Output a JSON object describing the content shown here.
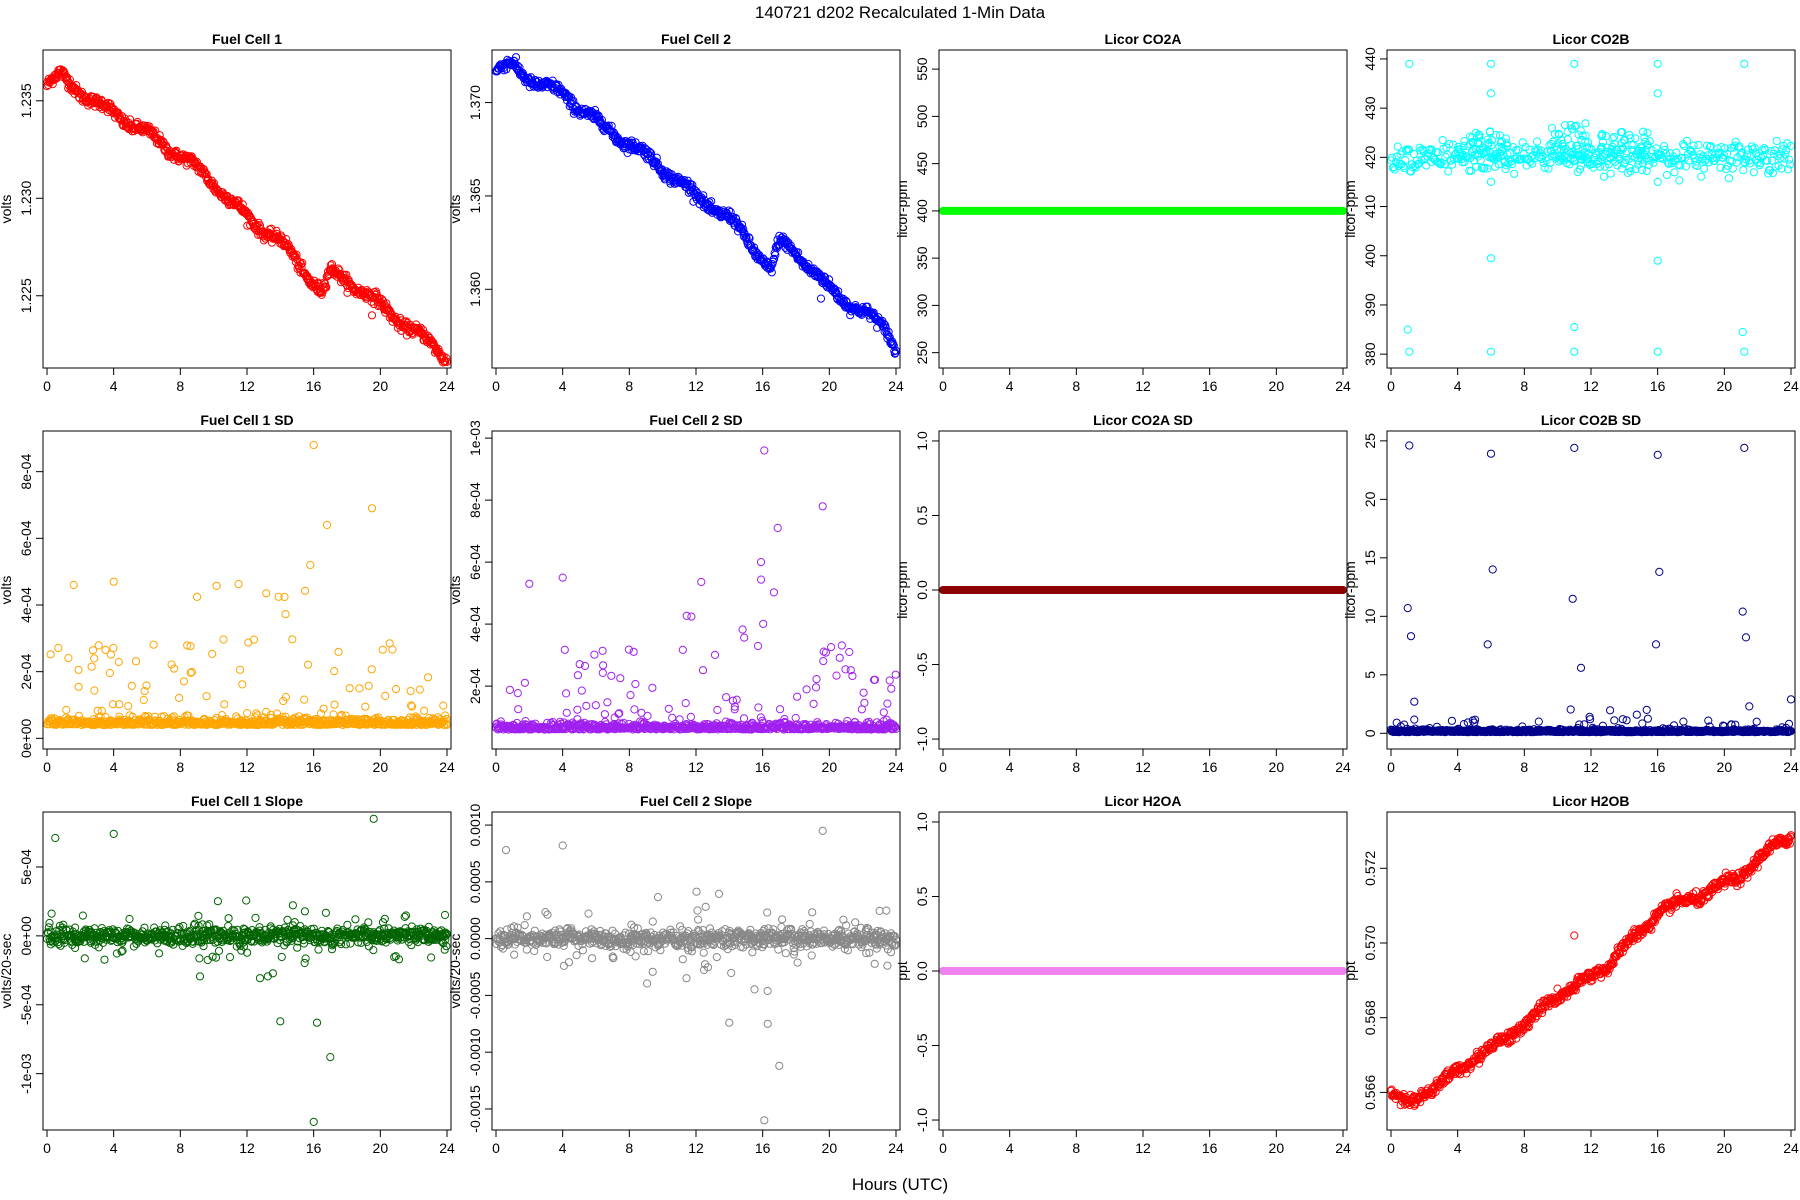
{
  "figure": {
    "title": "140721    d202   Recalculated 1-Min Data",
    "xlabel": "Hours (UTC)"
  },
  "chart_data": [
    {
      "type": "scatter",
      "title": "Fuel Cell 1",
      "ylabel": "volts",
      "color": "#ff0000",
      "xlim": [
        0,
        24
      ],
      "xticks": [
        "0",
        "4",
        "8",
        "12",
        "16",
        "20",
        "24"
      ],
      "ylim": [
        1.2215,
        1.2374
      ],
      "yticks": [
        {
          "value": 1.225,
          "label": "1.225"
        },
        {
          "value": 1.23,
          "label": "1.230"
        },
        {
          "value": 1.235,
          "label": "1.235"
        }
      ],
      "series": {
        "name": "Fuel Cell 1",
        "trend": [
          [
            0,
            1.2358
          ],
          [
            0.8,
            1.2363
          ],
          [
            2,
            1.2355
          ],
          [
            3,
            1.2348
          ],
          [
            4,
            1.2344
          ],
          [
            6,
            1.2333
          ],
          [
            8,
            1.2322
          ],
          [
            10,
            1.2308
          ],
          [
            12,
            1.229
          ],
          [
            14,
            1.2278
          ],
          [
            15.5,
            1.2262
          ],
          [
            16.5,
            1.2252
          ],
          [
            17,
            1.2262
          ],
          [
            18,
            1.2258
          ],
          [
            19,
            1.2252
          ],
          [
            20,
            1.2245
          ],
          [
            22,
            1.2232
          ],
          [
            23.5,
            1.2222
          ],
          [
            24,
            1.2218
          ]
        ],
        "noise": 0.00035,
        "spread": [
          [
            0,
            24,
            0.00015
          ]
        ],
        "outliers": [
          [
            19.5,
            1.224
          ]
        ]
      }
    },
    {
      "type": "scatter",
      "title": "Fuel Cell 2",
      "ylabel": "volts",
      "color": "#0000ff",
      "xlim": [
        0,
        24
      ],
      "xticks": [
        "0",
        "4",
        "8",
        "12",
        "16",
        "20",
        "24"
      ],
      "ylim": [
        1.356,
        1.3726
      ],
      "yticks": [
        {
          "value": 1.36,
          "label": "1.360"
        },
        {
          "value": 1.365,
          "label": "1.365"
        },
        {
          "value": 1.37,
          "label": "1.370"
        }
      ],
      "series": {
        "name": "Fuel Cell 2",
        "trend": [
          [
            0,
            1.3717
          ],
          [
            1,
            1.372
          ],
          [
            2,
            1.3713
          ],
          [
            3,
            1.3708
          ],
          [
            4,
            1.3705
          ],
          [
            6,
            1.369
          ],
          [
            8,
            1.3678
          ],
          [
            10,
            1.3665
          ],
          [
            12,
            1.365
          ],
          [
            14,
            1.3638
          ],
          [
            15.5,
            1.3622
          ],
          [
            16.5,
            1.361
          ],
          [
            17,
            1.3625
          ],
          [
            18,
            1.362
          ],
          [
            19,
            1.361
          ],
          [
            20,
            1.36
          ],
          [
            22,
            1.3588
          ],
          [
            23.5,
            1.3578
          ],
          [
            24,
            1.3568
          ]
        ],
        "noise": 0.00035,
        "spread": [
          [
            0,
            24,
            0.00015
          ]
        ],
        "outliers": [
          [
            19.5,
            1.3595
          ]
        ]
      }
    },
    {
      "type": "scatter",
      "title": "Licor CO2A",
      "ylabel": "licor-ppm",
      "color": "#00ff00",
      "xlim": [
        0,
        24
      ],
      "xticks": [
        "0",
        "4",
        "8",
        "12",
        "16",
        "20",
        "24"
      ],
      "ylim": [
        238,
        566
      ],
      "yticks": [
        {
          "value": 250,
          "label": "250"
        },
        {
          "value": 300,
          "label": "300"
        },
        {
          "value": 350,
          "label": "350"
        },
        {
          "value": 400,
          "label": "400"
        },
        {
          "value": 450,
          "label": "450"
        },
        {
          "value": 500,
          "label": "500"
        },
        {
          "value": 550,
          "label": "550"
        }
      ],
      "series": {
        "name": "Licor CO2A",
        "constant": 400
      }
    },
    {
      "type": "scatter",
      "title": "Licor CO2B",
      "ylabel": "licor-ppm",
      "color": "#00ffff",
      "xlim": [
        0,
        24
      ],
      "xticks": [
        "0",
        "4",
        "8",
        "12",
        "16",
        "20",
        "24"
      ],
      "ylim": [
        378,
        441
      ],
      "yticks": [
        {
          "value": 380,
          "label": "380"
        },
        {
          "value": 390,
          "label": "390"
        },
        {
          "value": 400,
          "label": "400"
        },
        {
          "value": 410,
          "label": "410"
        },
        {
          "value": 420,
          "label": "420"
        },
        {
          "value": 430,
          "label": "430"
        },
        {
          "value": 440,
          "label": "440"
        }
      ],
      "series": {
        "name": "Licor CO2B",
        "baseline": 420,
        "noise_points": 420,
        "noise_amp": 1.5,
        "bursts": [
          [
            4,
            7,
            4
          ],
          [
            9.5,
            12,
            5
          ],
          [
            12.5,
            15.5,
            4
          ]
        ],
        "outliers": [
          [
            1.1,
            439
          ],
          [
            1.1,
            380.5
          ],
          [
            1.0,
            385
          ],
          [
            6,
            439
          ],
          [
            6,
            380.5
          ],
          [
            6,
            433
          ],
          [
            6,
            399.5
          ],
          [
            6,
            415
          ],
          [
            11,
            439
          ],
          [
            11,
            380.5
          ],
          [
            11,
            385.5
          ],
          [
            16,
            439
          ],
          [
            16,
            380.5
          ],
          [
            16,
            433
          ],
          [
            16,
            399
          ],
          [
            16,
            415
          ],
          [
            21.2,
            439
          ],
          [
            21.2,
            380.5
          ],
          [
            21.1,
            384.5
          ],
          [
            11.2,
            417
          ]
        ]
      }
    },
    {
      "type": "scatter",
      "title": "Fuel Cell 1 SD",
      "ylabel": "volts",
      "color": "#ffa500",
      "xlim": [
        0,
        24
      ],
      "xticks": [
        "0",
        "4",
        "8",
        "12",
        "16",
        "20",
        "24"
      ],
      "ylim": [
        -2e-05,
        0.00091
      ],
      "yticks": [
        {
          "value": 0,
          "label": "0e+00"
        },
        {
          "value": 0.0002,
          "label": "2e-04"
        },
        {
          "value": 0.0004,
          "label": "4e-04"
        },
        {
          "value": 0.0006,
          "label": "6e-04"
        },
        {
          "value": 0.0008,
          "label": "8e-04"
        }
      ],
      "series": {
        "name": "Fuel Cell 1 SD",
        "baseline": 4e-05,
        "noise_amp": 1e-05,
        "scatter_max": 0.00045,
        "scatter_count": 130,
        "outliers": [
          [
            16,
            0.00088
          ],
          [
            19.5,
            0.00069
          ],
          [
            16.8,
            0.00064
          ],
          [
            15.8,
            0.00052
          ],
          [
            4,
            0.00047
          ],
          [
            1.6,
            0.00046
          ]
        ]
      }
    },
    {
      "type": "scatter",
      "title": "Fuel Cell 2 SD",
      "ylabel": "volts",
      "color": "#a020f0",
      "xlim": [
        0,
        24
      ],
      "xticks": [
        "0",
        "4",
        "8",
        "12",
        "16",
        "20",
        "24"
      ],
      "ylim": [
        1e-05,
        0.00101
      ],
      "yticks": [
        {
          "value": 0.0002,
          "label": "2e-04"
        },
        {
          "value": 0.0004,
          "label": "4e-04"
        },
        {
          "value": 0.0006,
          "label": "6e-04"
        },
        {
          "value": 0.0008,
          "label": "8e-04"
        },
        {
          "value": 0.001,
          "label": "1e-03"
        }
      ],
      "series": {
        "name": "Fuel Cell 2 SD",
        "baseline": 6e-05,
        "noise_amp": 1e-05,
        "scatter_max": 0.0005,
        "scatter_count": 130,
        "outliers": [
          [
            16.1,
            0.00096
          ],
          [
            19.6,
            0.00078
          ],
          [
            16.9,
            0.00071
          ],
          [
            15.9,
            0.0006
          ],
          [
            4,
            0.00055
          ],
          [
            2,
            0.00053
          ]
        ]
      }
    },
    {
      "type": "scatter",
      "title": "Licor CO2A SD",
      "ylabel": "licor-ppm",
      "color": "#8b0000",
      "xlim": [
        0,
        24
      ],
      "xticks": [
        "0",
        "4",
        "8",
        "12",
        "16",
        "20",
        "24"
      ],
      "ylim": [
        -1.04,
        1.04
      ],
      "yticks": [
        {
          "value": -1,
          "label": "-1.0"
        },
        {
          "value": -0.5,
          "label": "-0.5"
        },
        {
          "value": 0,
          "label": "0.0"
        },
        {
          "value": 0.5,
          "label": "0.5"
        },
        {
          "value": 1,
          "label": "1.0"
        }
      ],
      "series": {
        "name": "Licor CO2A SD",
        "constant": 0
      }
    },
    {
      "type": "scatter",
      "title": "Licor CO2B SD",
      "ylabel": "licor-ppm",
      "color": "#00008b",
      "xlim": [
        0,
        24
      ],
      "xticks": [
        "0",
        "4",
        "8",
        "12",
        "16",
        "20",
        "24"
      ],
      "ylim": [
        -1,
        25.5
      ],
      "yticks": [
        {
          "value": 0,
          "label": "0"
        },
        {
          "value": 5,
          "label": "5"
        },
        {
          "value": 10,
          "label": "10"
        },
        {
          "value": 15,
          "label": "15"
        },
        {
          "value": 20,
          "label": "20"
        },
        {
          "value": 25,
          "label": "25"
        }
      ],
      "series": {
        "name": "Licor CO2B SD",
        "baseline": 0.1,
        "noise_amp": 0.1,
        "scatter_max": 2,
        "scatter_count": 90,
        "outliers": [
          [
            1.1,
            24.6
          ],
          [
            1.0,
            10.7
          ],
          [
            1.2,
            8.3
          ],
          [
            1.4,
            2.7
          ],
          [
            6,
            23.9
          ],
          [
            6.1,
            14
          ],
          [
            5.8,
            7.6
          ],
          [
            11,
            24.4
          ],
          [
            10.9,
            11.5
          ],
          [
            11.4,
            5.6
          ],
          [
            16,
            23.8
          ],
          [
            16.1,
            13.8
          ],
          [
            15.9,
            7.6
          ],
          [
            21.2,
            24.4
          ],
          [
            21.1,
            10.4
          ],
          [
            21.3,
            8.2
          ],
          [
            21.5,
            2.3
          ],
          [
            24,
            2.9
          ]
        ]
      }
    },
    {
      "type": "scatter",
      "title": "Fuel Cell 1 Slope",
      "ylabel": "volts/20-sec",
      "color": "#006400",
      "xlim": [
        0,
        24
      ],
      "xticks": [
        "0",
        "4",
        "8",
        "12",
        "16",
        "20",
        "24"
      ],
      "ylim": [
        -0.00138,
        0.00087
      ],
      "yticks": [
        {
          "value": -0.001,
          "label": "-1e-03"
        },
        {
          "value": -0.0005,
          "label": "-5e-04"
        },
        {
          "value": 0,
          "label": "0e+00"
        },
        {
          "value": 0.0005,
          "label": "5e-04"
        }
      ],
      "series": {
        "name": "Fuel Cell 1 Slope",
        "baseline": 0,
        "noise_amp": 3e-05,
        "scatter_max": 0.0003,
        "scatter_count": 160,
        "outliers": [
          [
            16,
            -0.00135
          ],
          [
            17,
            -0.00088
          ],
          [
            19.6,
            0.00085
          ],
          [
            4,
            0.00074
          ],
          [
            0.5,
            0.00071
          ],
          [
            16.2,
            -0.00063
          ],
          [
            14,
            -0.00062
          ]
        ]
      }
    },
    {
      "type": "scatter",
      "title": "Fuel Cell 2 Slope",
      "ylabel": "volts/20-sec",
      "color": "#888888",
      "xlim": [
        0,
        24
      ],
      "xticks": [
        "0",
        "4",
        "8",
        "12",
        "16",
        "20",
        "24"
      ],
      "ylim": [
        -0.00165,
        0.00108
      ],
      "yticks": [
        {
          "value": -0.0015,
          "label": "-0.0015"
        },
        {
          "value": -0.001,
          "label": "-0.0010"
        },
        {
          "value": -0.0005,
          "label": "-0.0005"
        },
        {
          "value": 0,
          "label": "0.0000"
        },
        {
          "value": 0.0005,
          "label": "0.0005"
        },
        {
          "value": 0.001,
          "label": "0.0010"
        }
      ],
      "series": {
        "name": "Fuel Cell 2 Slope",
        "baseline": 0,
        "noise_amp": 4e-05,
        "scatter_max": 0.00045,
        "scatter_count": 160,
        "outliers": [
          [
            16.1,
            -0.0016
          ],
          [
            17,
            -0.00112
          ],
          [
            19.6,
            0.00095
          ],
          [
            4,
            0.00082
          ],
          [
            0.6,
            0.00078
          ],
          [
            16.3,
            -0.00075
          ],
          [
            14,
            -0.00074
          ]
        ]
      }
    },
    {
      "type": "scatter",
      "title": "Licor H2OA",
      "ylabel": "ppt",
      "color": "#ee82ee",
      "xlim": [
        0,
        24
      ],
      "xticks": [
        "0",
        "4",
        "8",
        "12",
        "16",
        "20",
        "24"
      ],
      "ylim": [
        -1.04,
        1.04
      ],
      "yticks": [
        {
          "value": -1,
          "label": "-1.0"
        },
        {
          "value": -0.5,
          "label": "-0.5"
        },
        {
          "value": 0,
          "label": "0.0"
        },
        {
          "value": 0.5,
          "label": "0.5"
        },
        {
          "value": 1,
          "label": "1.0"
        }
      ],
      "series": {
        "name": "Licor H2OA",
        "constant": 0
      }
    },
    {
      "type": "scatter",
      "title": "Licor H2OB",
      "ylabel": "ppt",
      "color": "#ff0000",
      "xlim": [
        0,
        24
      ],
      "xticks": [
        "0",
        "4",
        "8",
        "12",
        "16",
        "20",
        "24"
      ],
      "ylim": [
        0.5651,
        0.5734
      ],
      "yticks": [
        {
          "value": 0.566,
          "label": "0.566"
        },
        {
          "value": 0.568,
          "label": "0.568"
        },
        {
          "value": 0.57,
          "label": "0.570"
        },
        {
          "value": 0.572,
          "label": "0.572"
        }
      ],
      "series": {
        "name": "Licor H2OB",
        "trend": [
          [
            0,
            0.566
          ],
          [
            1,
            0.5657
          ],
          [
            2,
            0.566
          ],
          [
            3,
            0.5662
          ],
          [
            4,
            0.5666
          ],
          [
            6,
            0.5672
          ],
          [
            8,
            0.5678
          ],
          [
            10,
            0.5686
          ],
          [
            11,
            0.5688
          ],
          [
            12,
            0.5691
          ],
          [
            13,
            0.5694
          ],
          [
            14,
            0.5699
          ],
          [
            15,
            0.5703
          ],
          [
            16,
            0.5708
          ],
          [
            17,
            0.571
          ],
          [
            18,
            0.5712
          ],
          [
            19,
            0.5713
          ],
          [
            20,
            0.5716
          ],
          [
            21,
            0.5718
          ],
          [
            22,
            0.5722
          ],
          [
            23,
            0.5726
          ],
          [
            24,
            0.5729
          ]
        ],
        "noise": 0.00012,
        "spread": [
          [
            0,
            24,
            8e-05
          ]
        ],
        "outliers": [
          [
            11,
            0.5702
          ]
        ]
      }
    }
  ]
}
